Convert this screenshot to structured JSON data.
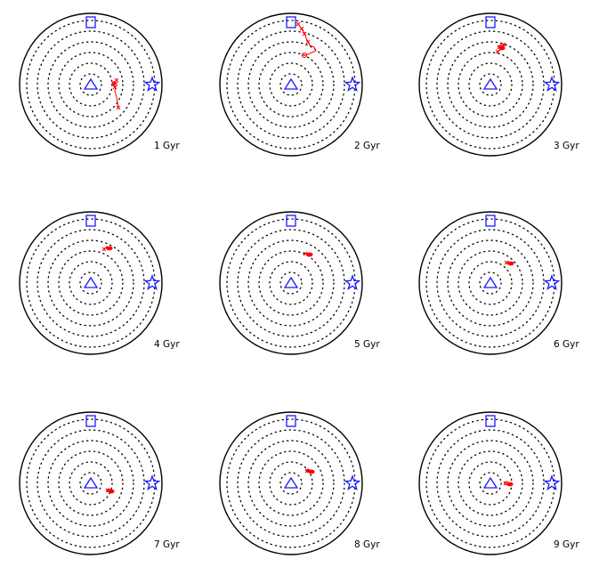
{
  "panels": [
    {
      "label": "1 Gyr"
    },
    {
      "label": "2 Gyr"
    },
    {
      "label": "3 Gyr"
    },
    {
      "label": "4 Gyr"
    },
    {
      "label": "5 Gyr"
    },
    {
      "label": "6 Gyr"
    },
    {
      "label": "7 Gyr"
    },
    {
      "label": "8 Gyr"
    },
    {
      "label": "9 Gyr"
    }
  ],
  "colors": {
    "outline": "#000000",
    "markers": "#1a1aff",
    "track": "#ff0000"
  }
}
